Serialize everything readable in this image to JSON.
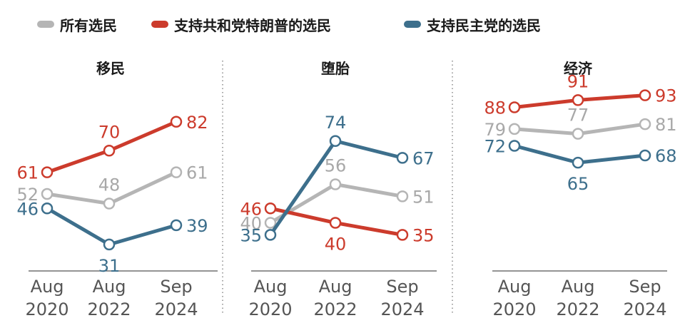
{
  "legend": [
    {
      "name": "所有选民",
      "color": "#b5b5b5"
    },
    {
      "name": "支持共和党特朗普的选民",
      "color": "#cc3b2c"
    },
    {
      "name": "支持民主党的选民",
      "color": "#3d6f8c"
    }
  ],
  "chart_data": [
    {
      "type": "line",
      "title": "移民",
      "categories": [
        "Aug 2020",
        "Aug 2022",
        "Sep 2024"
      ],
      "xtick_lines": [
        [
          "Aug",
          "2020"
        ],
        [
          "Aug",
          "2022"
        ],
        [
          "Sep",
          "2024"
        ]
      ],
      "series": [
        {
          "name": "所有选民",
          "color": "#b5b5b5",
          "values": [
            52,
            48,
            61
          ]
        },
        {
          "name": "支持共和党特朗普的选民",
          "color": "#cc3b2c",
          "values": [
            61,
            70,
            82
          ]
        },
        {
          "name": "支持民主党的选民",
          "color": "#3d6f8c",
          "values": [
            46,
            31,
            39
          ]
        }
      ],
      "ylim": [
        20,
        100
      ]
    },
    {
      "type": "line",
      "title": "堕胎",
      "categories": [
        "Aug 2020",
        "Aug 2022",
        "Sep 2024"
      ],
      "xtick_lines": [
        [
          "Aug",
          "2020"
        ],
        [
          "Aug",
          "2022"
        ],
        [
          "Sep",
          "2024"
        ]
      ],
      "series": [
        {
          "name": "所有选民",
          "color": "#b5b5b5",
          "values": [
            40,
            56,
            51
          ]
        },
        {
          "name": "支持共和党特朗普的选民",
          "color": "#cc3b2c",
          "values": [
            46,
            40,
            35
          ]
        },
        {
          "name": "支持民主党的选民",
          "color": "#3d6f8c",
          "values": [
            35,
            74,
            67
          ]
        }
      ],
      "ylim": [
        20,
        100
      ]
    },
    {
      "type": "line",
      "title": "经济",
      "categories": [
        "Aug 2020",
        "Aug 2022",
        "Sep 2024"
      ],
      "xtick_lines": [
        [
          "Aug",
          "2020"
        ],
        [
          "Aug",
          "2022"
        ],
        [
          "Sep",
          "2024"
        ]
      ],
      "series": [
        {
          "name": "所有选民",
          "color": "#b5b5b5",
          "values": [
            79,
            77,
            81
          ]
        },
        {
          "name": "支持共和党特朗普的选民",
          "color": "#cc3b2c",
          "values": [
            88,
            91,
            93
          ]
        },
        {
          "name": "支持民主党的选民",
          "color": "#3d6f8c",
          "values": [
            72,
            65,
            68
          ]
        }
      ],
      "ylim": [
        20,
        100
      ]
    }
  ]
}
